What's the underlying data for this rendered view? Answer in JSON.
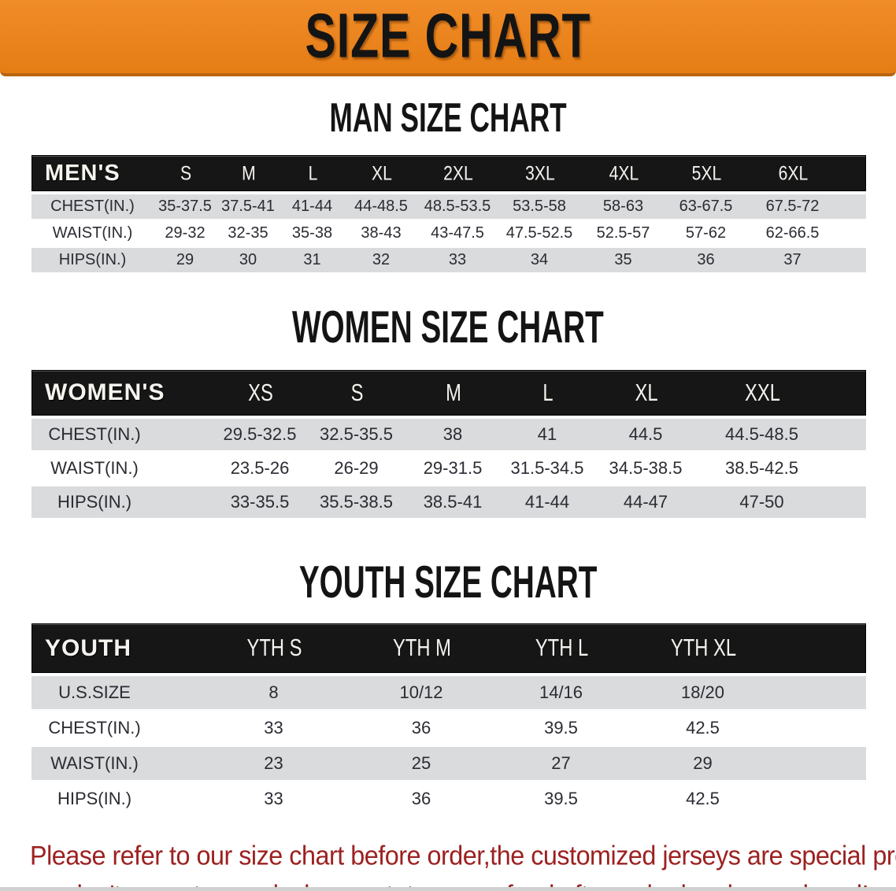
{
  "banner": {
    "title": "SIZE CHART",
    "bg_color": "#EA831F",
    "border_color": "#B96410",
    "text_color": "#141414"
  },
  "headings": {
    "men": "MAN SIZE CHART",
    "women": "WOMEN SIZE CHART",
    "youth": "YOUTH SIZE CHART"
  },
  "tables": {
    "men": {
      "corner_label": "MEN'S",
      "size_headers": [
        "S",
        "M",
        "L",
        "XL",
        "2XL",
        "3XL",
        "4XL",
        "5XL",
        "6XL"
      ],
      "rows": [
        {
          "label": "CHEST(IN.)",
          "values": [
            "35-37.5",
            "37.5-41",
            "41-44",
            "44-48.5",
            "48.5-53.5",
            "53.5-58",
            "58-63",
            "63-67.5",
            "67.5-72"
          ]
        },
        {
          "label": "WAIST(IN.)",
          "values": [
            "29-32",
            "32-35",
            "35-38",
            "38-43",
            "43-47.5",
            "47.5-52.5",
            "52.5-57",
            "57-62",
            "62-66.5"
          ]
        },
        {
          "label": "HIPS(IN.)",
          "values": [
            "29",
            "30",
            "31",
            "32",
            "33",
            "34",
            "35",
            "36",
            "37"
          ]
        }
      ]
    },
    "women": {
      "corner_label": "WOMEN'S",
      "size_headers": [
        "XS",
        "S",
        "M",
        "L",
        "XL",
        "XXL"
      ],
      "rows": [
        {
          "label": "CHEST(IN.)",
          "values": [
            "29.5-32.5",
            "32.5-35.5",
            "38",
            "41",
            "44.5",
            "44.5-48.5"
          ]
        },
        {
          "label": "WAIST(IN.)",
          "values": [
            "23.5-26",
            "26-29",
            "29-31.5",
            "31.5-34.5",
            "34.5-38.5",
            "38.5-42.5"
          ]
        },
        {
          "label": "HIPS(IN.)",
          "values": [
            "33-35.5",
            "35.5-38.5",
            "38.5-41",
            "41-44",
            "44-47",
            "47-50"
          ]
        }
      ]
    },
    "youth": {
      "corner_label": "YOUTH",
      "size_headers": [
        "YTH S",
        "YTH M",
        "YTH L",
        "YTH XL"
      ],
      "rows": [
        {
          "label": "U.S.SIZE",
          "values": [
            "8",
            "10/12",
            "14/16",
            "18/20"
          ]
        },
        {
          "label": "CHEST(IN.)",
          "values": [
            "33",
            "36",
            "39.5",
            "42.5"
          ]
        },
        {
          "label": "WAIST(IN.)",
          "values": [
            "23",
            "25",
            "27",
            "29"
          ]
        },
        {
          "label": "HIPS(IN.)",
          "values": [
            "33",
            "36",
            "39.5",
            "42.5"
          ]
        }
      ]
    }
  },
  "disclaimer": {
    "lines": [
      "Please refer to our size chart before order,the customized jerseys are special products,",
      "we don't accept cancel, change, teturn or refund after order has been placed!"
    ],
    "color": "#9C2121"
  },
  "colors": {
    "header_bar": "#161616",
    "row_stripe": "#D9DBDC",
    "row_alt": "#FFFFFF",
    "value_text": "#2B2B33"
  }
}
